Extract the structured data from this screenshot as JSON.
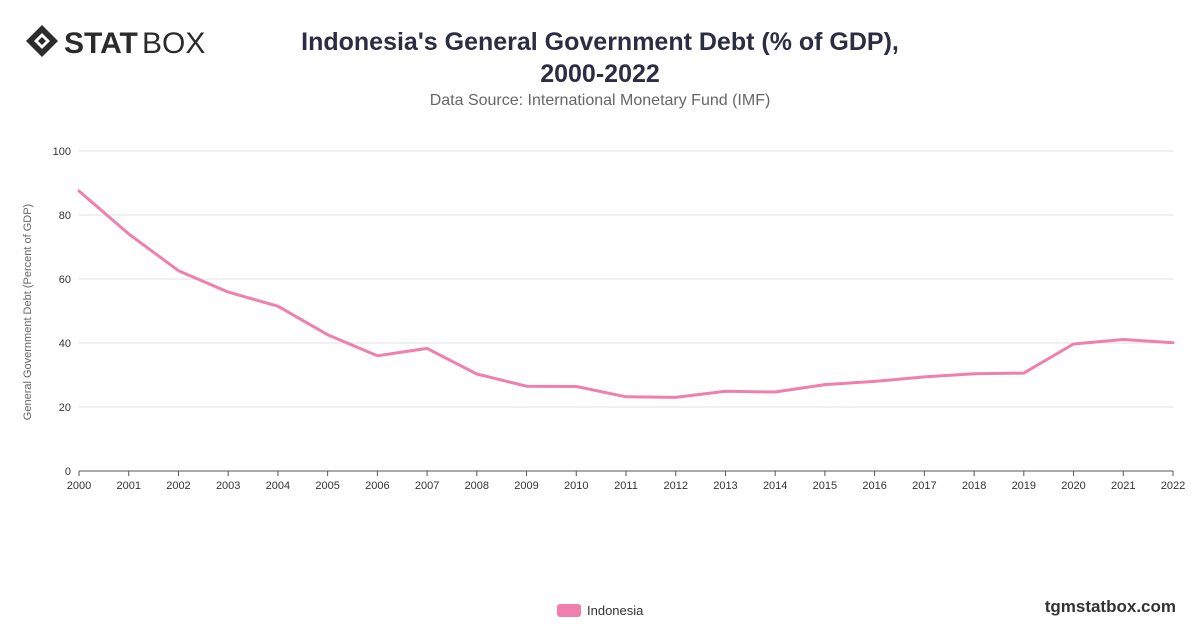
{
  "header": {
    "logo_bold": "STAT",
    "logo_light": "BOX",
    "title_line1": "Indonesia's General Government Debt (% of GDP),",
    "title_line2": "2000-2022",
    "subtitle": "Data Source: International Monetary Fund (IMF)"
  },
  "footer": {
    "brand": "tgmstatbox.com"
  },
  "colors": {
    "line": "#f07fae",
    "grid": "#e0e0e0",
    "axis_text": "#333333",
    "title": "#2b2d42"
  },
  "chart_data": {
    "type": "line",
    "title": "Indonesia's General Government Debt (% of GDP), 2000-2022",
    "subtitle": "Data Source: International Monetary Fund (IMF)",
    "xlabel": "",
    "ylabel": "General Government Debt (Percent of GDP)",
    "ylim": [
      0,
      100
    ],
    "yticks": [
      0,
      20,
      40,
      60,
      80,
      100
    ],
    "grid": true,
    "legend_position": "bottom-center",
    "categories": [
      "2000",
      "2001",
      "2002",
      "2003",
      "2004",
      "2005",
      "2006",
      "2007",
      "2008",
      "2009",
      "2010",
      "2011",
      "2012",
      "2013",
      "2014",
      "2015",
      "2016",
      "2017",
      "2018",
      "2019",
      "2020",
      "2021",
      "2022"
    ],
    "series": [
      {
        "name": "Indonesia",
        "color": "#f07fae",
        "values": [
          87.5,
          74.1,
          62.6,
          55.9,
          51.5,
          42.6,
          36.0,
          38.3,
          30.3,
          26.5,
          26.4,
          23.2,
          23.0,
          24.9,
          24.7,
          27.0,
          28.0,
          29.4,
          30.4,
          30.6,
          39.7,
          41.1,
          40.1
        ]
      }
    ]
  }
}
